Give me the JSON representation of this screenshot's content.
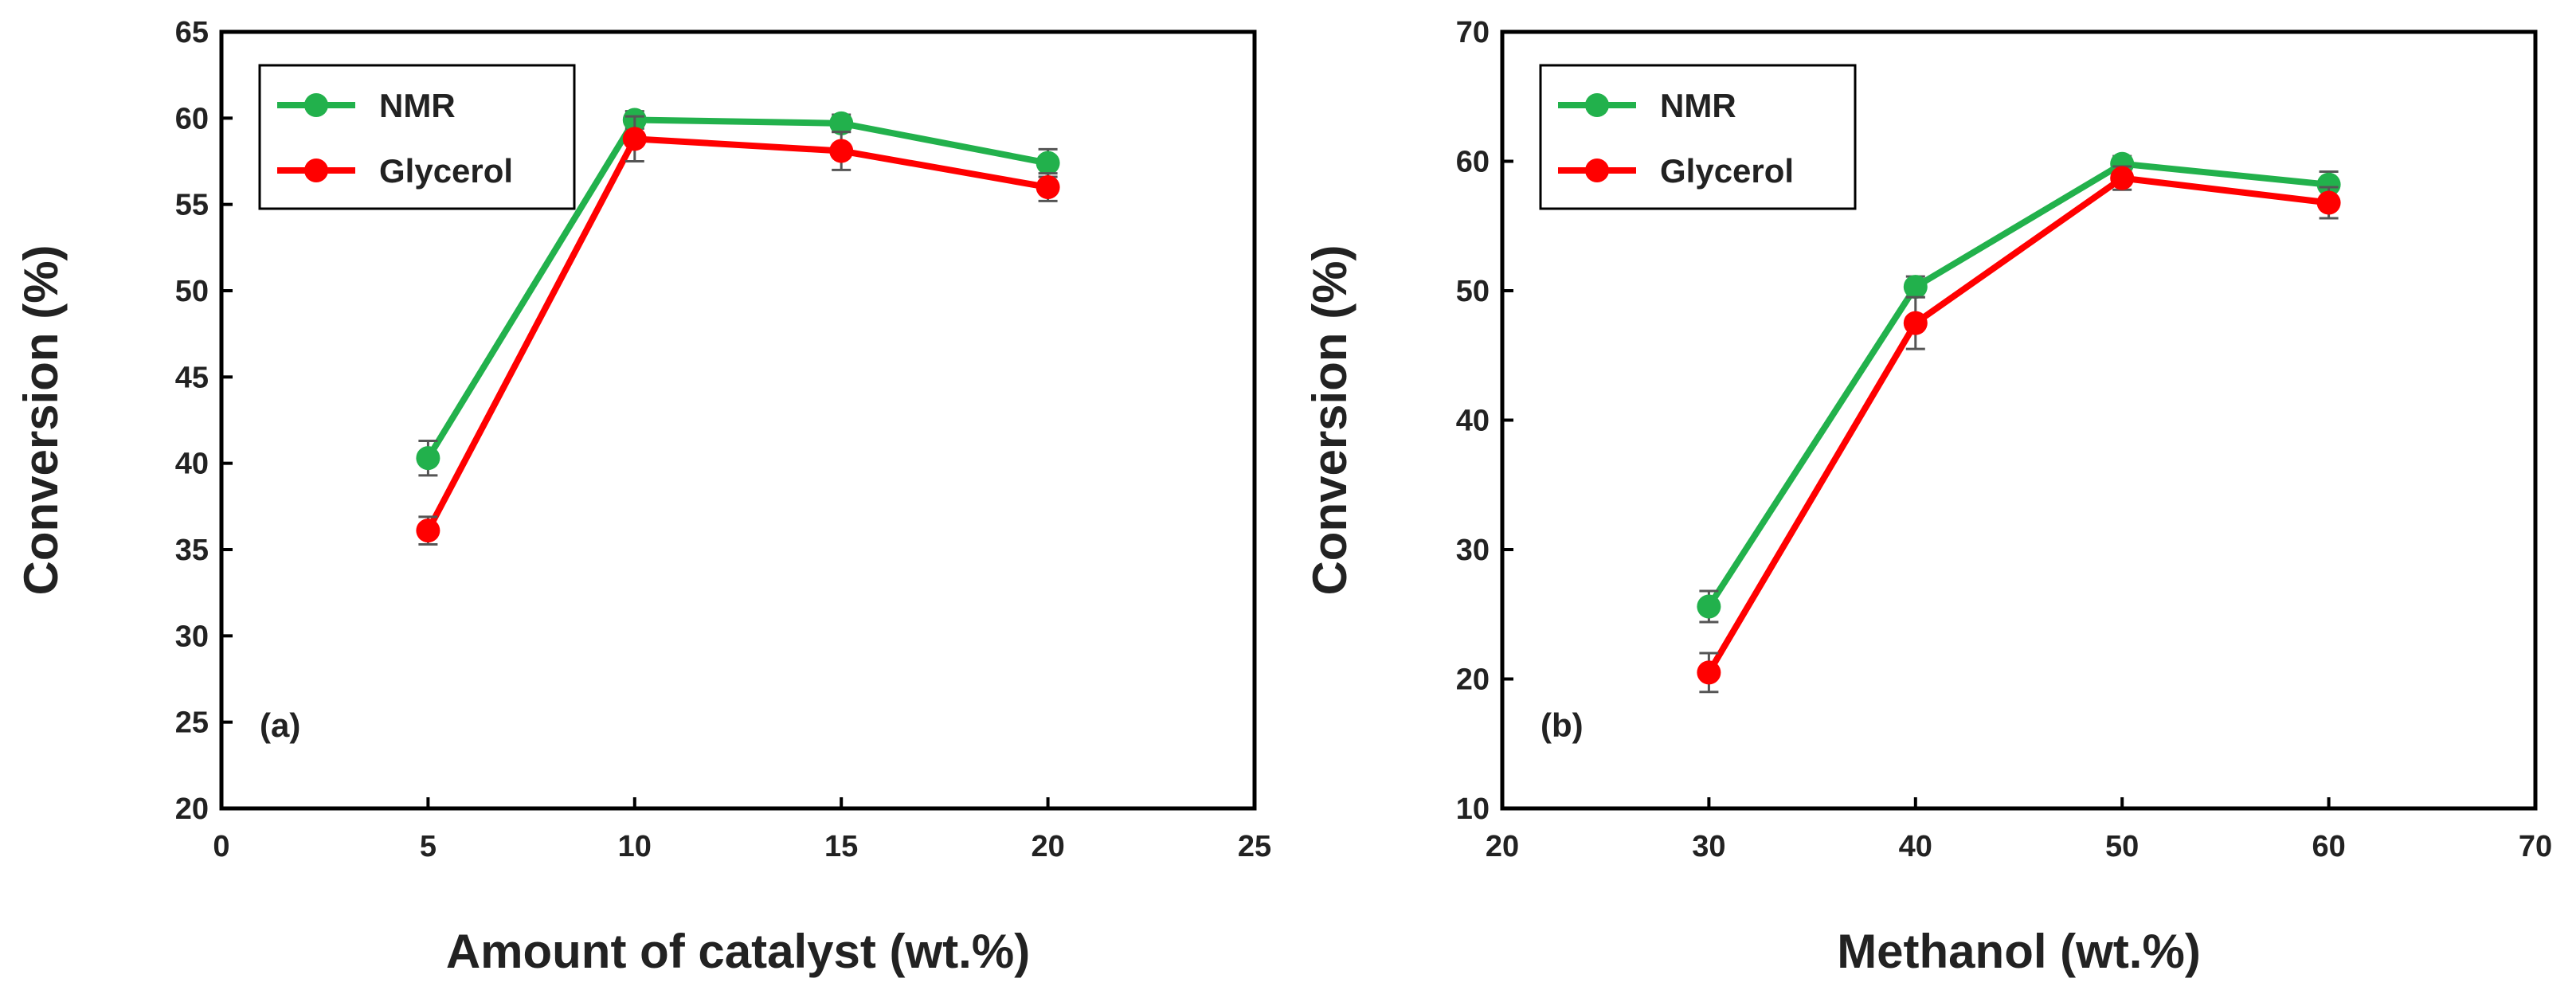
{
  "chart_data": [
    {
      "type": "line",
      "panel_label": "(a)",
      "xlabel": "Amount of catalyst (wt.%)",
      "ylabel": "Conversion (%)",
      "xlim": [
        0,
        25
      ],
      "ylim": [
        20,
        65
      ],
      "xticks": [
        0,
        5,
        10,
        15,
        20,
        25
      ],
      "yticks": [
        20,
        25,
        30,
        35,
        40,
        45,
        50,
        55,
        60,
        65
      ],
      "grid": false,
      "legend_position": "top-left",
      "x": [
        5,
        10,
        15,
        20
      ],
      "series": [
        {
          "name": "NMR",
          "color": "#22b14c",
          "values": [
            40.3,
            59.9,
            59.7,
            57.4
          ],
          "errors": [
            1.0,
            0.5,
            0.5,
            0.8
          ]
        },
        {
          "name": "Glycerol",
          "color": "#ff0000",
          "values": [
            36.1,
            58.8,
            58.1,
            56.0
          ],
          "errors": [
            0.8,
            1.3,
            1.1,
            0.8
          ]
        }
      ]
    },
    {
      "type": "line",
      "panel_label": "(b)",
      "xlabel": "Methanol (wt.%)",
      "ylabel": "Conversion (%)",
      "xlim": [
        20,
        70
      ],
      "ylim": [
        10,
        70
      ],
      "xticks": [
        20,
        30,
        40,
        50,
        60,
        70
      ],
      "yticks": [
        10,
        20,
        30,
        40,
        50,
        60,
        70
      ],
      "grid": false,
      "legend_position": "top-left",
      "x": [
        30,
        40,
        50,
        60
      ],
      "series": [
        {
          "name": "NMR",
          "color": "#22b14c",
          "values": [
            25.6,
            50.3,
            59.8,
            58.2
          ],
          "errors": [
            1.2,
            0.8,
            0.6,
            1.0
          ]
        },
        {
          "name": "Glycerol",
          "color": "#ff0000",
          "values": [
            20.5,
            47.5,
            58.7,
            56.8
          ],
          "errors": [
            1.5,
            2.0,
            0.9,
            1.2
          ]
        }
      ]
    }
  ]
}
